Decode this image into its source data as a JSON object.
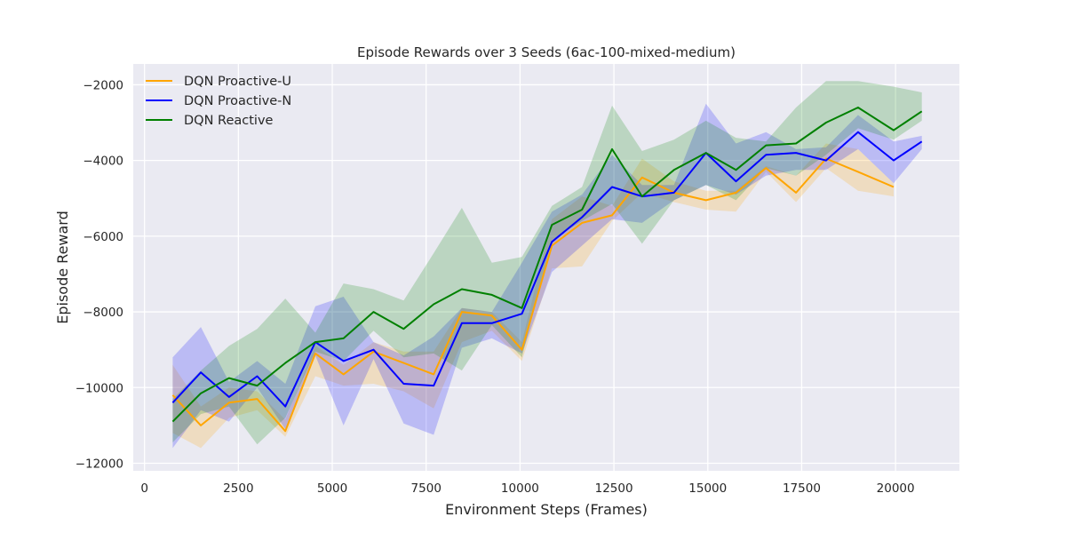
{
  "chart_data": {
    "type": "line",
    "title": "Episode Rewards over 3 Seeds (6ac-100-mixed-medium)",
    "xlabel": "Environment Steps (Frames)",
    "ylabel": "Episode Reward",
    "xlim": [
      -300,
      21700
    ],
    "ylim": [
      -12200,
      -1450
    ],
    "xticks": [
      0,
      2500,
      5000,
      7500,
      10000,
      12500,
      15000,
      17500,
      20000
    ],
    "yticks": [
      -12000,
      -10000,
      -8000,
      -6000,
      -4000,
      -2000
    ],
    "grid": true,
    "legend_position": "top-left",
    "series": [
      {
        "name": "DQN Proactive-U",
        "color": "#FFA500",
        "x": [
          750,
          1500,
          2250,
          3000,
          3750,
          4550,
          5300,
          6100,
          6900,
          7700,
          8450,
          9250,
          10050,
          10850,
          11650,
          12450,
          13250,
          14100,
          14950,
          15750,
          16550,
          17350,
          18150,
          19000,
          19950
        ],
        "y": [
          -10200,
          -11000,
          -10400,
          -10300,
          -11150,
          -9100,
          -9650,
          -9050,
          -9350,
          -9650,
          -8000,
          -8100,
          -9000,
          -6250,
          -5650,
          -5450,
          -4450,
          -4850,
          -5050,
          -4850,
          -4200,
          -4850,
          -3950,
          -4300,
          -4700
        ],
        "lower": [
          -11200,
          -11600,
          -10800,
          -10600,
          -11300,
          -9700,
          -9950,
          -9900,
          -10100,
          -10550,
          -8800,
          -8500,
          -9300,
          -6850,
          -6800,
          -5600,
          -4850,
          -5100,
          -5300,
          -5350,
          -4300,
          -5100,
          -4200,
          -4800,
          -4950
        ],
        "upper": [
          -9400,
          -10500,
          -10000,
          -10100,
          -10850,
          -8900,
          -9400,
          -8800,
          -9050,
          -9050,
          -7900,
          -8000,
          -8800,
          -5550,
          -4950,
          -5200,
          -3950,
          -4550,
          -4800,
          -4800,
          -4150,
          -4400,
          -3550,
          -3700,
          -4600
        ]
      },
      {
        "name": "DQN Proactive-N",
        "color": "#0000FF",
        "x": [
          750,
          1500,
          2250,
          3000,
          3750,
          4550,
          5300,
          6100,
          6900,
          7700,
          8450,
          9250,
          10050,
          10850,
          11650,
          12450,
          13250,
          14100,
          14950,
          15750,
          16550,
          17350,
          18150,
          19000,
          19950,
          20700
        ],
        "y": [
          -10400,
          -9600,
          -10250,
          -9700,
          -10500,
          -8800,
          -9300,
          -9000,
          -9900,
          -9950,
          -8300,
          -8300,
          -8050,
          -6150,
          -5500,
          -4700,
          -4950,
          -4850,
          -3800,
          -4550,
          -3850,
          -3800,
          -4000,
          -3250,
          -4000,
          -3500
        ],
        "lower": [
          -11600,
          -10600,
          -10900,
          -10000,
          -11100,
          -9150,
          -11000,
          -9250,
          -10950,
          -11250,
          -8950,
          -8700,
          -9100,
          -6950,
          -6250,
          -5550,
          -5650,
          -5050,
          -4650,
          -4900,
          -4400,
          -4250,
          -4250,
          -3700,
          -4600,
          -3700
        ],
        "upper": [
          -9200,
          -8400,
          -9850,
          -9300,
          -9900,
          -7850,
          -7600,
          -8800,
          -9150,
          -8650,
          -7900,
          -8000,
          -6700,
          -5350,
          -4900,
          -3850,
          -4650,
          -4650,
          -2500,
          -3550,
          -3250,
          -3700,
          -3650,
          -2800,
          -3500,
          -3350
        ]
      },
      {
        "name": "DQN Reactive",
        "color": "#008000",
        "x": [
          750,
          1500,
          2250,
          3000,
          3750,
          4550,
          5300,
          6100,
          6900,
          7700,
          8450,
          9250,
          10050,
          10850,
          11650,
          12450,
          13250,
          14100,
          14950,
          15750,
          16550,
          17350,
          18150,
          19000,
          19950,
          20700
        ],
        "y": [
          -10900,
          -10150,
          -9750,
          -9950,
          -9350,
          -8800,
          -8700,
          -8000,
          -8450,
          -7800,
          -7400,
          -7550,
          -7900,
          -5700,
          -5300,
          -3700,
          -4950,
          -4250,
          -3800,
          -4250,
          -3600,
          -3550,
          -3000,
          -2600,
          -3200,
          -2700
        ],
        "lower": [
          -11450,
          -10700,
          -10500,
          -11500,
          -10800,
          -9050,
          -9300,
          -8500,
          -9200,
          -9100,
          -9550,
          -8350,
          -9200,
          -6100,
          -5600,
          -5150,
          -6200,
          -5050,
          -4650,
          -5050,
          -4200,
          -4400,
          -3850,
          -3150,
          -3450,
          -2950
        ],
        "upper": [
          -10300,
          -9550,
          -8900,
          -8450,
          -7650,
          -8550,
          -7250,
          -7400,
          -7700,
          -6450,
          -5250,
          -6700,
          -6550,
          -5200,
          -4700,
          -2550,
          -3750,
          -3450,
          -2950,
          -3400,
          -3500,
          -2600,
          -1900,
          -1900,
          -2050,
          -2200
        ]
      }
    ]
  },
  "colors": {
    "plot_background": "#EAEAF2",
    "grid": "#FFFFFF",
    "text": "#262626"
  }
}
